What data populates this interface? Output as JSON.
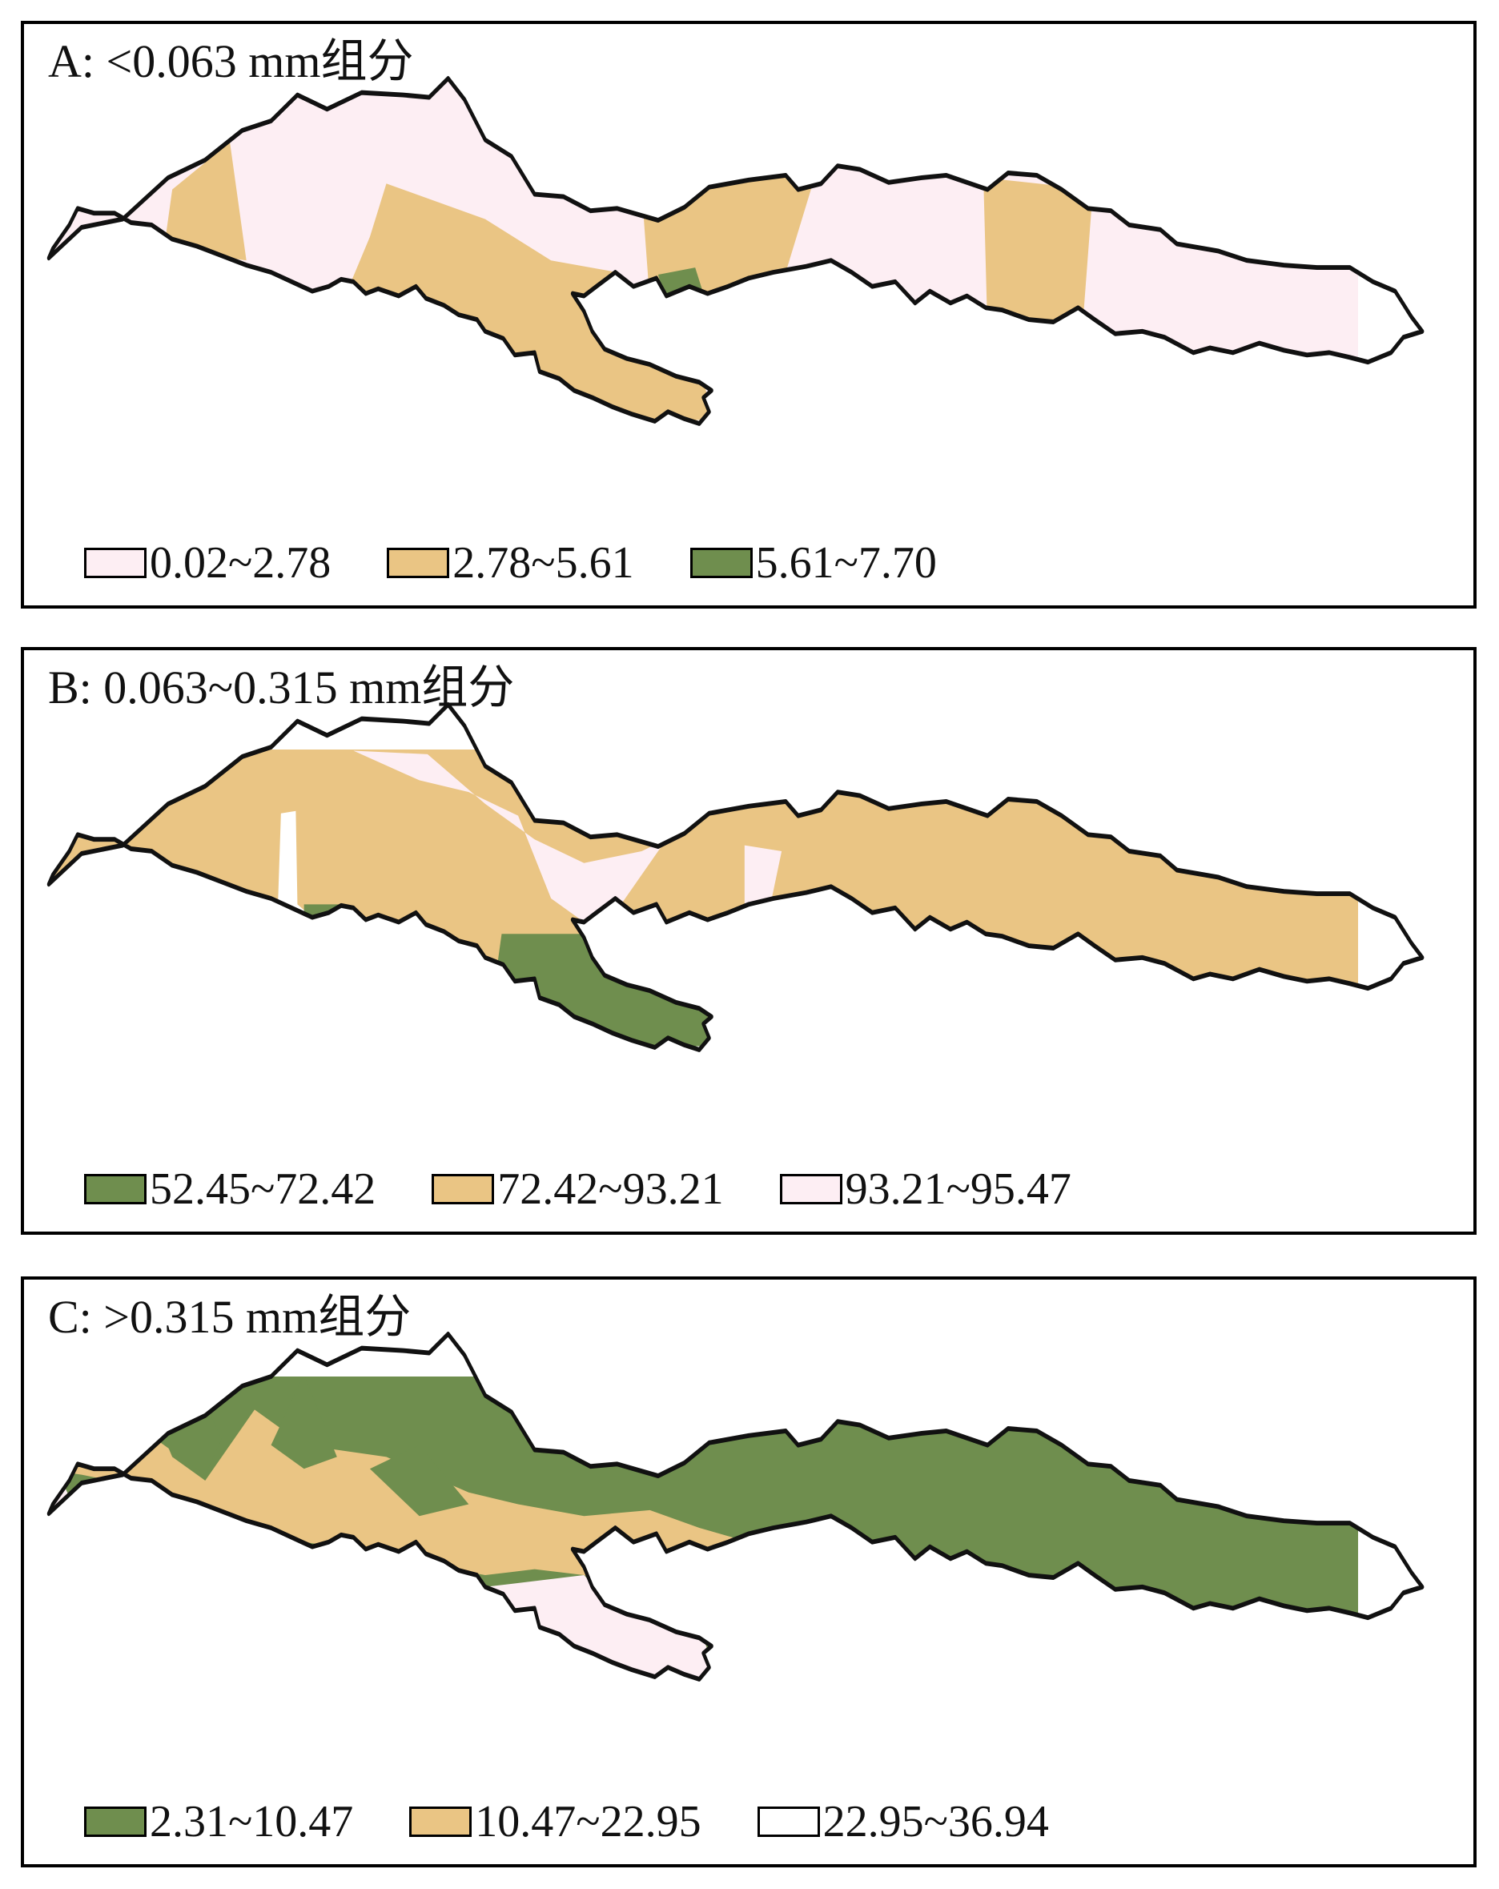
{
  "colors": {
    "pink": "#fdeef3",
    "tan": "#eac584",
    "green": "#6f8e4e",
    "white": "#ffffff",
    "outline": "#111111"
  },
  "panels": [
    {
      "id": "a",
      "title": "A: <0.063 mm组分",
      "legend": [
        {
          "label": "0.02~2.78",
          "color": "pink",
          "icon": "pink-swatch"
        },
        {
          "label": "2.78~5.61",
          "color": "tan",
          "icon": "tan-swatch"
        },
        {
          "label": "5.61~7.70",
          "color": "green",
          "icon": "green-swatch"
        }
      ]
    },
    {
      "id": "b",
      "title": "B: 0.063~0.315 mm组分",
      "legend": [
        {
          "label": "52.45~72.42",
          "color": "green",
          "icon": "green-swatch"
        },
        {
          "label": "72.42~93.21",
          "color": "tan",
          "icon": "tan-swatch"
        },
        {
          "label": "93.21~95.47",
          "color": "pink",
          "icon": "pink-swatch"
        }
      ]
    },
    {
      "id": "c",
      "title": "C: >0.315 mm组分",
      "legend": [
        {
          "label": "2.31~10.47",
          "color": "green",
          "icon": "green-swatch"
        },
        {
          "label": "10.47~22.95",
          "color": "tan",
          "icon": "tan-swatch"
        },
        {
          "label": "22.95~36.94",
          "color": "white",
          "icon": "white-swatch"
        }
      ]
    }
  ]
}
